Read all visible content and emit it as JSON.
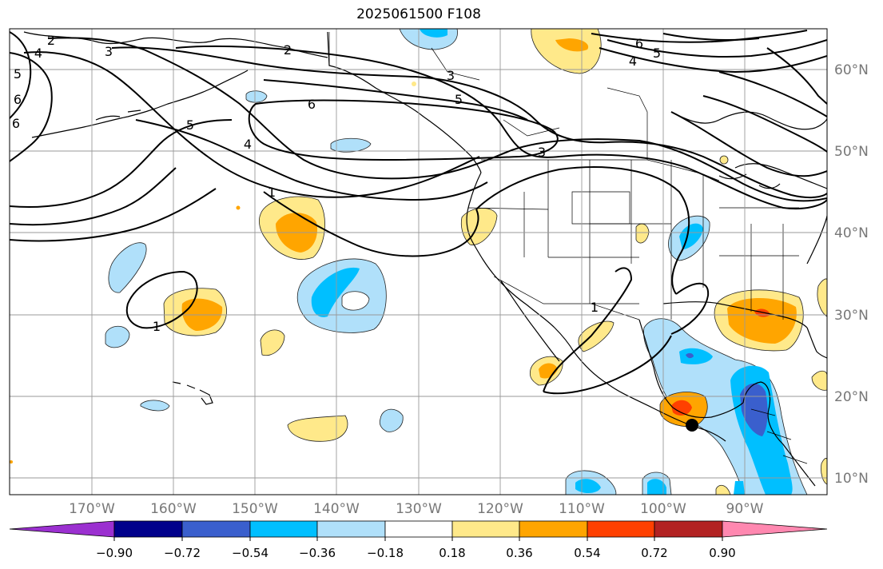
{
  "title": "2025061500 F108",
  "longitude_labels": [
    "170°W",
    "160°W",
    "150°W",
    "140°W",
    "130°W",
    "120°W",
    "110°W",
    "100°W",
    "90°W"
  ],
  "latitude_labels": [
    "60°N",
    "50°N",
    "40°N",
    "30°N",
    "20°N",
    "10°N"
  ],
  "colorbar": {
    "colors": [
      "#9b30d0",
      "#00008b",
      "#3a5fcd",
      "#00bfff",
      "#b0e0fa",
      "#ffffff",
      "#ffe98a",
      "#ffa500",
      "#ff4000",
      "#b22222",
      "#ff88b0"
    ],
    "tick_labels": [
      "−0.90",
      "−0.72",
      "−0.54",
      "−0.36",
      "−0.18",
      "0.18",
      "0.36",
      "0.54",
      "0.72",
      "0.90"
    ]
  },
  "contour_labels": [
    "2",
    "3",
    "4",
    "5",
    "6",
    "4",
    "5",
    "6",
    "2",
    "3",
    "4",
    "5",
    "6",
    "3",
    "5",
    "6",
    "1",
    "1",
    "1"
  ],
  "marker": "black-dot"
}
